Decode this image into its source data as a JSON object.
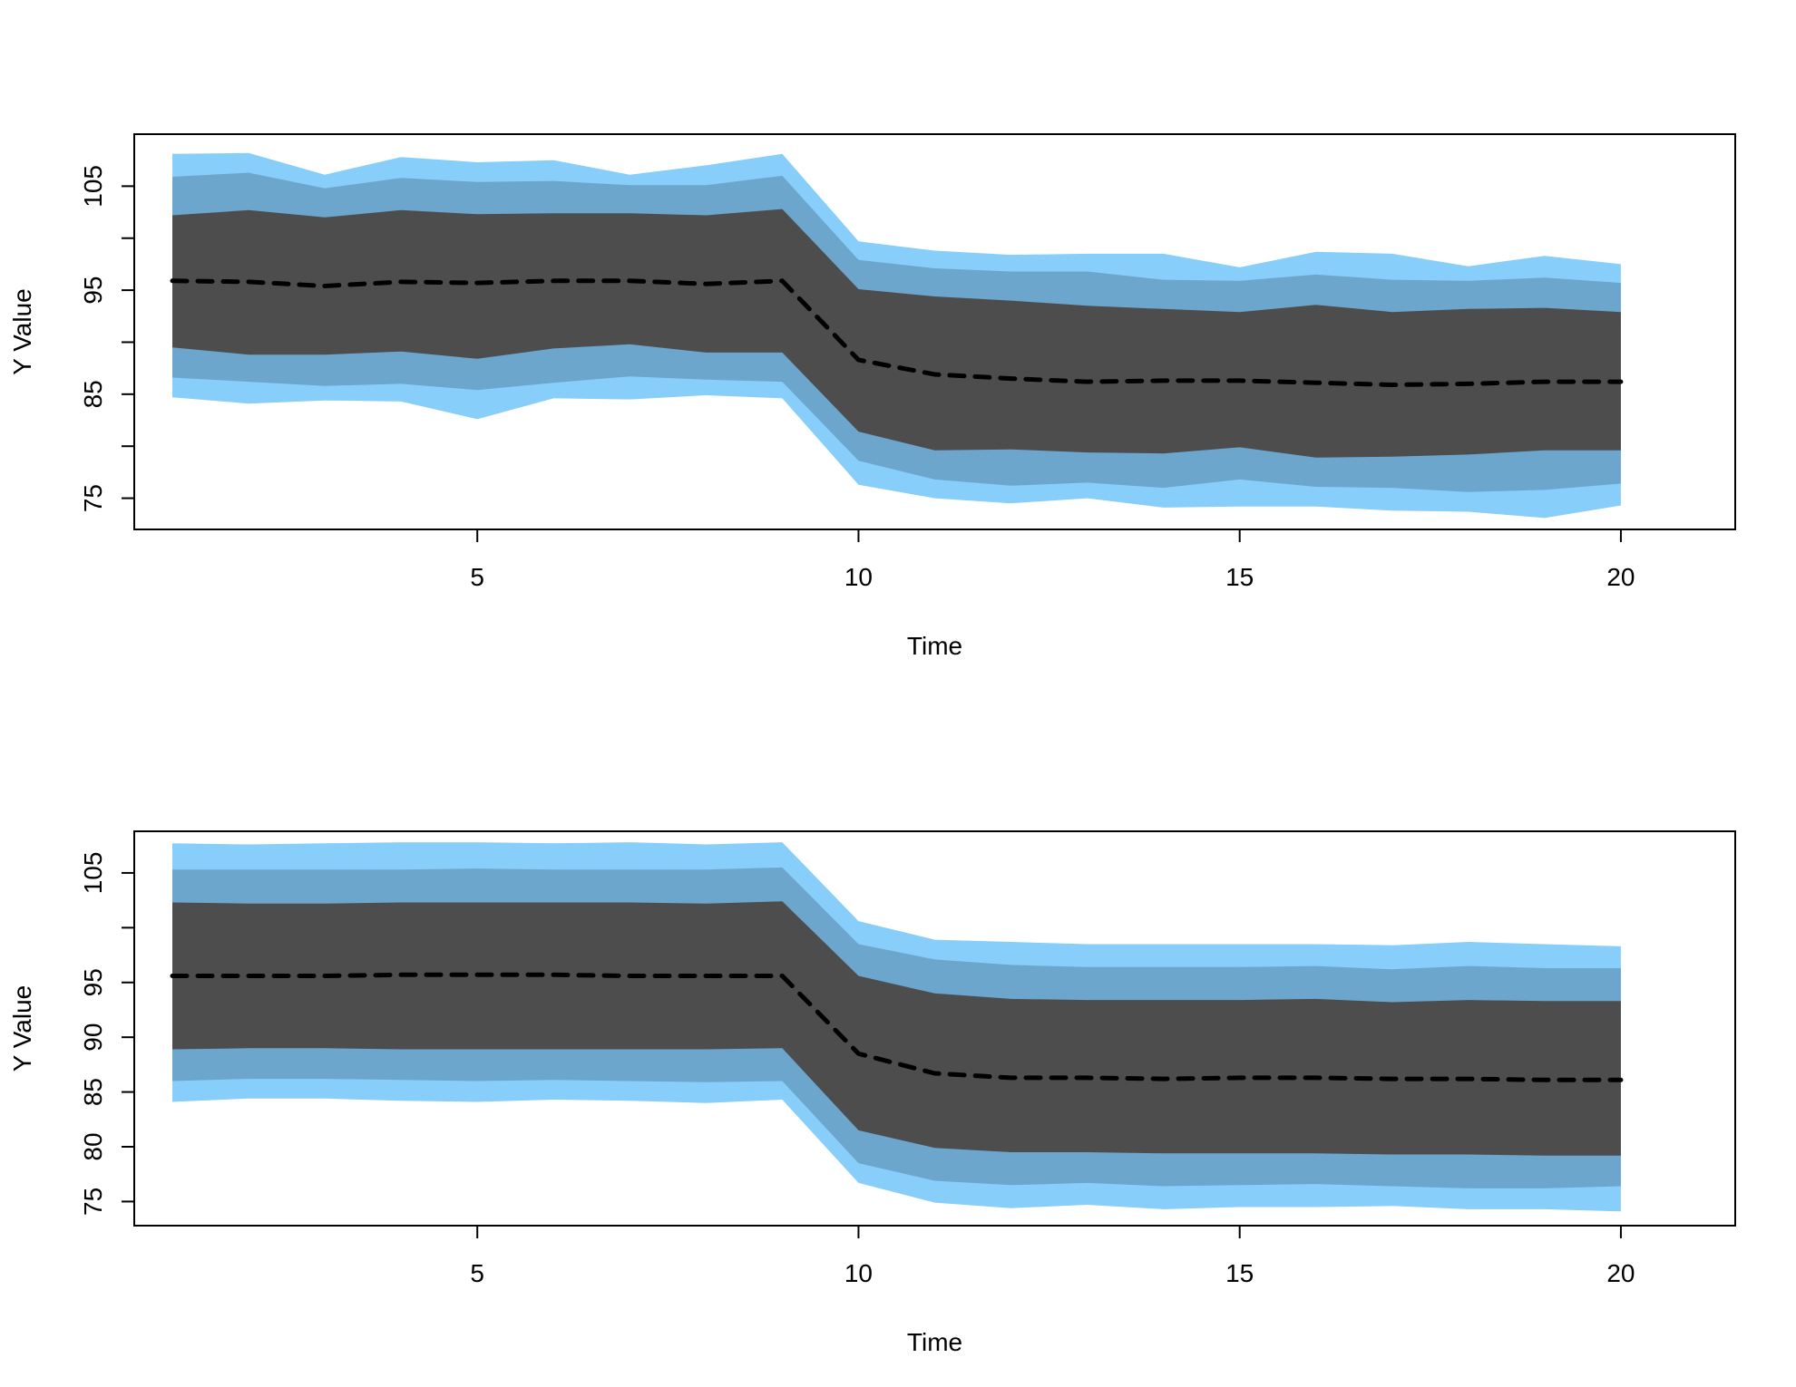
{
  "colors": {
    "band_outer": "#87CEFA",
    "band_middle": "#6CA6CD",
    "band_inner": "#4D4D4D",
    "median_line": "#000000",
    "frame": "#000000",
    "background": "#FFFFFF"
  },
  "chart_data": [
    {
      "type": "area",
      "title": "",
      "xlabel": "Time",
      "ylabel": "Y Value",
      "xlim": [
        0.5,
        21.5
      ],
      "ylim": [
        72.0,
        110.0
      ],
      "x_ticks": [
        5,
        10,
        15,
        20
      ],
      "y_ticks": [
        75,
        80,
        85,
        90,
        95,
        100,
        105
      ],
      "y_tick_labels": [
        {
          "value": 75,
          "label": "75"
        },
        {
          "value": 85,
          "label": "85"
        },
        {
          "value": 95,
          "label": "95"
        },
        {
          "value": 105,
          "label": "105"
        }
      ],
      "x_tick_labels": [
        {
          "value": 5,
          "label": "5"
        },
        {
          "value": 10,
          "label": "10"
        },
        {
          "value": 15,
          "label": "15"
        },
        {
          "value": 20,
          "label": "20"
        }
      ],
      "grid": false,
      "x": [
        1,
        2,
        3,
        4,
        5,
        6,
        7,
        8,
        9,
        10,
        11,
        12,
        13,
        14,
        15,
        16,
        17,
        18,
        19,
        20
      ],
      "median": [
        95.9,
        95.8,
        95.4,
        95.8,
        95.7,
        95.9,
        95.9,
        95.6,
        95.9,
        88.3,
        86.9,
        86.5,
        86.2,
        86.3,
        86.3,
        86.1,
        85.9,
        86.0,
        86.2,
        86.2
      ],
      "bands": [
        {
          "level": "outer",
          "lower": [
            84.7,
            84.1,
            84.4,
            84.3,
            82.6,
            84.6,
            84.5,
            84.9,
            84.6,
            76.3,
            75.0,
            74.5,
            75.0,
            74.1,
            74.2,
            74.2,
            73.8,
            73.7,
            73.1,
            74.3
          ],
          "upper": [
            108.1,
            108.2,
            106.1,
            107.8,
            107.3,
            107.5,
            106.1,
            107.0,
            108.1,
            99.7,
            98.8,
            98.4,
            98.5,
            98.5,
            97.2,
            98.7,
            98.5,
            97.3,
            98.3,
            97.5
          ]
        },
        {
          "level": "middle",
          "lower": [
            86.6,
            86.2,
            85.8,
            86.0,
            85.4,
            86.1,
            86.7,
            86.4,
            86.2,
            78.6,
            76.8,
            76.2,
            76.5,
            76.0,
            76.8,
            76.1,
            76.0,
            75.6,
            75.8,
            76.4
          ],
          "upper": [
            105.9,
            106.3,
            104.8,
            105.8,
            105.4,
            105.5,
            105.1,
            105.1,
            106.0,
            97.9,
            97.1,
            96.8,
            96.8,
            96.0,
            95.9,
            96.5,
            96.0,
            95.9,
            96.2,
            95.7
          ]
        },
        {
          "level": "inner",
          "lower": [
            89.5,
            88.8,
            88.8,
            89.1,
            88.4,
            89.4,
            89.8,
            89.0,
            89.0,
            81.4,
            79.6,
            79.7,
            79.4,
            79.3,
            79.9,
            78.9,
            79.0,
            79.2,
            79.6,
            79.6
          ],
          "upper": [
            102.2,
            102.7,
            102.0,
            102.7,
            102.3,
            102.4,
            102.4,
            102.2,
            102.8,
            95.1,
            94.4,
            94.0,
            93.5,
            93.2,
            92.9,
            93.6,
            92.9,
            93.2,
            93.3,
            92.9
          ]
        }
      ]
    },
    {
      "type": "area",
      "title": "",
      "xlabel": "Time",
      "ylabel": "Y Value",
      "xlim": [
        0.5,
        21.5
      ],
      "ylim": [
        72.8,
        108.8
      ],
      "x_ticks": [
        5,
        10,
        15,
        20
      ],
      "y_ticks": [
        75,
        80,
        85,
        90,
        95,
        100,
        105
      ],
      "y_tick_labels": [
        {
          "value": 75,
          "label": "75"
        },
        {
          "value": 80,
          "label": "80"
        },
        {
          "value": 85,
          "label": "85"
        },
        {
          "value": 90,
          "label": "90"
        },
        {
          "value": 95,
          "label": "95"
        },
        {
          "value": 105,
          "label": "105"
        }
      ],
      "x_tick_labels": [
        {
          "value": 5,
          "label": "5"
        },
        {
          "value": 10,
          "label": "10"
        },
        {
          "value": 15,
          "label": "15"
        },
        {
          "value": 20,
          "label": "20"
        }
      ],
      "grid": false,
      "x": [
        1,
        2,
        3,
        4,
        5,
        6,
        7,
        8,
        9,
        10,
        11,
        12,
        13,
        14,
        15,
        16,
        17,
        18,
        19,
        20
      ],
      "median": [
        95.6,
        95.6,
        95.6,
        95.7,
        95.7,
        95.7,
        95.6,
        95.6,
        95.6,
        88.5,
        86.7,
        86.3,
        86.3,
        86.2,
        86.3,
        86.3,
        86.2,
        86.2,
        86.1,
        86.1
      ],
      "bands": [
        {
          "level": "outer",
          "lower": [
            84.1,
            84.4,
            84.4,
            84.2,
            84.1,
            84.3,
            84.2,
            84.0,
            84.3,
            76.7,
            74.9,
            74.4,
            74.7,
            74.3,
            74.5,
            74.5,
            74.6,
            74.3,
            74.3,
            74.1
          ],
          "upper": [
            107.7,
            107.6,
            107.7,
            107.8,
            107.8,
            107.7,
            107.8,
            107.6,
            107.8,
            100.6,
            98.9,
            98.7,
            98.5,
            98.5,
            98.5,
            98.5,
            98.4,
            98.7,
            98.5,
            98.3
          ]
        },
        {
          "level": "middle",
          "lower": [
            86.0,
            86.2,
            86.2,
            86.1,
            86.0,
            86.1,
            86.0,
            85.9,
            86.0,
            78.5,
            76.9,
            76.5,
            76.7,
            76.4,
            76.5,
            76.6,
            76.4,
            76.2,
            76.2,
            76.4
          ],
          "upper": [
            105.3,
            105.3,
            105.3,
            105.3,
            105.4,
            105.3,
            105.3,
            105.3,
            105.5,
            98.5,
            97.1,
            96.6,
            96.4,
            96.4,
            96.4,
            96.5,
            96.2,
            96.5,
            96.3,
            96.3
          ]
        },
        {
          "level": "inner",
          "lower": [
            88.9,
            89.0,
            89.0,
            88.9,
            88.9,
            88.9,
            88.9,
            88.9,
            89.0,
            81.5,
            79.9,
            79.5,
            79.5,
            79.4,
            79.4,
            79.4,
            79.3,
            79.3,
            79.2,
            79.2
          ],
          "upper": [
            102.3,
            102.2,
            102.2,
            102.3,
            102.3,
            102.3,
            102.3,
            102.2,
            102.4,
            95.6,
            94.0,
            93.5,
            93.4,
            93.4,
            93.4,
            93.5,
            93.2,
            93.4,
            93.3,
            93.3
          ]
        }
      ]
    }
  ]
}
